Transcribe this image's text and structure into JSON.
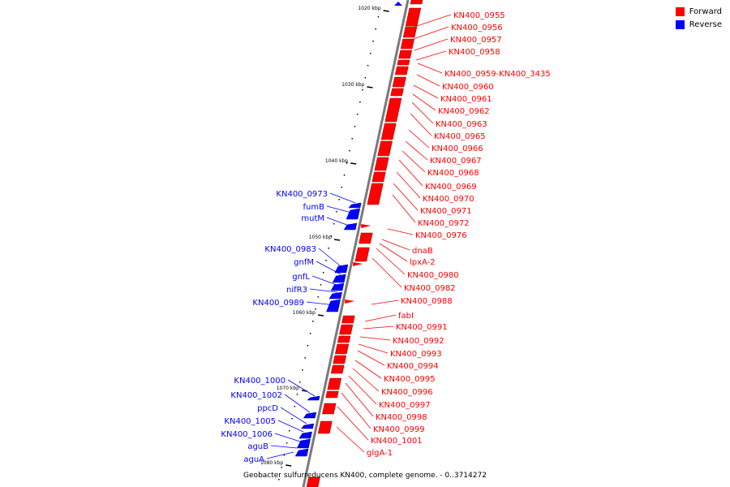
{
  "title": "Geobacter sulfurreducens KN400, complete genome. - 0..3714272",
  "legend": [
    {
      "label": "Forward",
      "color": "#ff0000"
    },
    {
      "label": "Reverse",
      "color": "#0000ff"
    }
  ],
  "colors": {
    "forward": "#ff0000",
    "reverse": "#0000ff",
    "axis": "#7a7a7a",
    "ticks": "#000000"
  },
  "kbp_ticks": [
    "1020 kbp",
    "1030 kbp",
    "1040 kbp",
    "1050 kbp",
    "1060 kbp",
    "1070 kbp",
    "1080 kbp"
  ],
  "forward_labels": [
    "KN400_0955",
    "KN400_0956",
    "KN400_0957",
    "KN400_0958",
    "KN400_0959-KN400_3435",
    "KN400_0960",
    "KN400_0961",
    "KN400_0962",
    "KN400_0963",
    "KN400_0965",
    "KN400_0966",
    "KN400_0967",
    "KN400_0968",
    "KN400_0969",
    "KN400_0970",
    "KN400_0971",
    "KN400_0972",
    "KN400_0976",
    "dnaB",
    "lpxA-2",
    "KN400_0980",
    "KN400_0982",
    "KN400_0988",
    "fabI",
    "KN400_0991",
    "KN400_0992",
    "KN400_0993",
    "KN400_0994",
    "KN400_0995",
    "KN400_0996",
    "KN400_0997",
    "KN400_0998",
    "KN400_0999",
    "KN400_1001",
    "glgA-1"
  ],
  "reverse_labels": [
    "KN400_0973",
    "fumB",
    "mutM",
    "KN400_0983",
    "gnfM",
    "gnfL",
    "nifR3",
    "KN400_0989",
    "KN400_1000",
    "KN400_1002",
    "ppcD",
    "KN400_1005",
    "KN400_1006",
    "aguB",
    "aguA"
  ]
}
